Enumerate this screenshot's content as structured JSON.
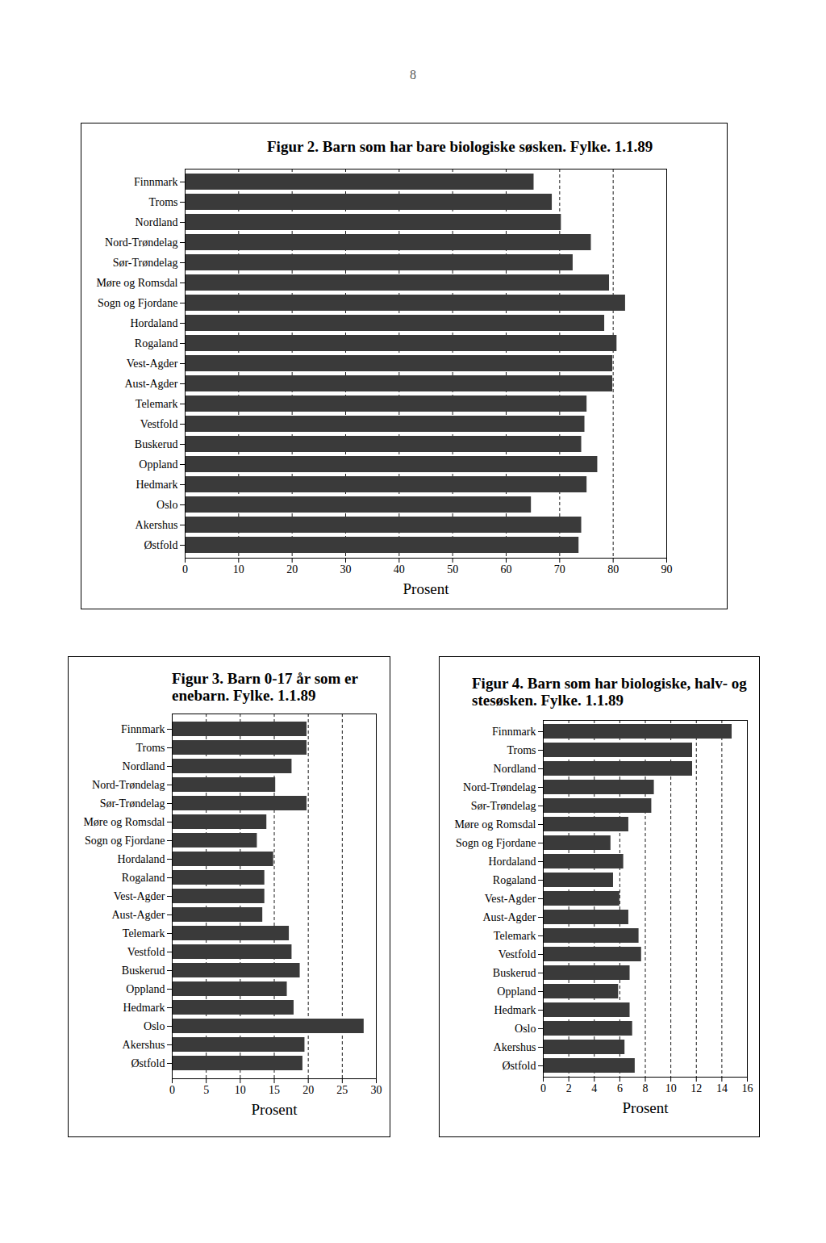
{
  "page": "8",
  "chart_data": [
    {
      "type": "bar",
      "orientation": "horizontal",
      "title": "Figur 2. Barn som har bare biologiske søsken. Fylke. 1.1.89",
      "xlabel": "Prosent",
      "categories": [
        "Finnmark",
        "Troms",
        "Nordland",
        "Nord-Trøndelag",
        "Sør-Trøndelag",
        "Møre og Romsdal",
        "Sogn og Fjordane",
        "Hordaland",
        "Rogaland",
        "Vest-Agder",
        "Aust-Agder",
        "Telemark",
        "Vestfold",
        "Buskerud",
        "Oppland",
        "Hedmark",
        "Oslo",
        "Akershus",
        "Østfold"
      ],
      "values": [
        65.2,
        68.6,
        70.3,
        75.9,
        72.5,
        79.3,
        82.3,
        78.4,
        80.7,
        79.9,
        79.9,
        75.1,
        74.7,
        74.1,
        77.1,
        75.1,
        64.7,
        74.1,
        73.6
      ],
      "color": "#3a3a3a",
      "xlim": [
        0,
        90
      ],
      "xticks": [
        0,
        10,
        20,
        30,
        40,
        50,
        60,
        70,
        80,
        90
      ],
      "grid": true
    },
    {
      "type": "bar",
      "orientation": "horizontal",
      "title": "Figur 3. Barn 0-17 år som er enebarn. Fylke. 1.1.89",
      "xlabel": "Prosent",
      "categories": [
        "Finnmark",
        "Troms",
        "Nordland",
        "Nord-Trøndelag",
        "Sør-Trøndelag",
        "Møre og Romsdal",
        "Sogn og Fjordane",
        "Hordaland",
        "Rogaland",
        "Vest-Agder",
        "Aust-Agder",
        "Telemark",
        "Vestfold",
        "Buskerud",
        "Oppland",
        "Hedmark",
        "Oslo",
        "Akershus",
        "Østfold"
      ],
      "values": [
        19.8,
        19.8,
        17.6,
        15.2,
        19.8,
        13.9,
        12.5,
        14.9,
        13.6,
        13.6,
        13.3,
        17.2,
        17.6,
        18.8,
        16.9,
        17.9,
        28.2,
        19.5,
        19.2
      ],
      "color": "#3a3a3a",
      "xlim": [
        0,
        30
      ],
      "xticks": [
        0,
        5,
        10,
        15,
        20,
        25,
        30
      ],
      "grid": true
    },
    {
      "type": "bar",
      "orientation": "horizontal",
      "title": "Figur 4. Barn som har biologiske, halv- og stesøsken. Fylke. 1.1.89",
      "xlabel": "Prosent",
      "categories": [
        "Finnmark",
        "Troms",
        "Nordland",
        "Nord-Trøndelag",
        "Sør-Trøndelag",
        "Møre og Romsdal",
        "Sogn og Fjordane",
        "Hordaland",
        "Rogaland",
        "Vest-Agder",
        "Aust-Agder",
        "Telemark",
        "Vestfold",
        "Buskerud",
        "Oppland",
        "Hedmark",
        "Oslo",
        "Akershus",
        "Østfold"
      ],
      "values": [
        14.8,
        11.7,
        11.7,
        8.7,
        8.5,
        6.7,
        5.3,
        6.3,
        5.5,
        6.0,
        6.7,
        7.5,
        7.7,
        6.8,
        5.9,
        6.8,
        7.0,
        6.4,
        7.2
      ],
      "color": "#3a3a3a",
      "xlim": [
        0,
        16
      ],
      "xticks": [
        0,
        2,
        4,
        6,
        8,
        10,
        12,
        14,
        16
      ],
      "grid": true
    }
  ]
}
